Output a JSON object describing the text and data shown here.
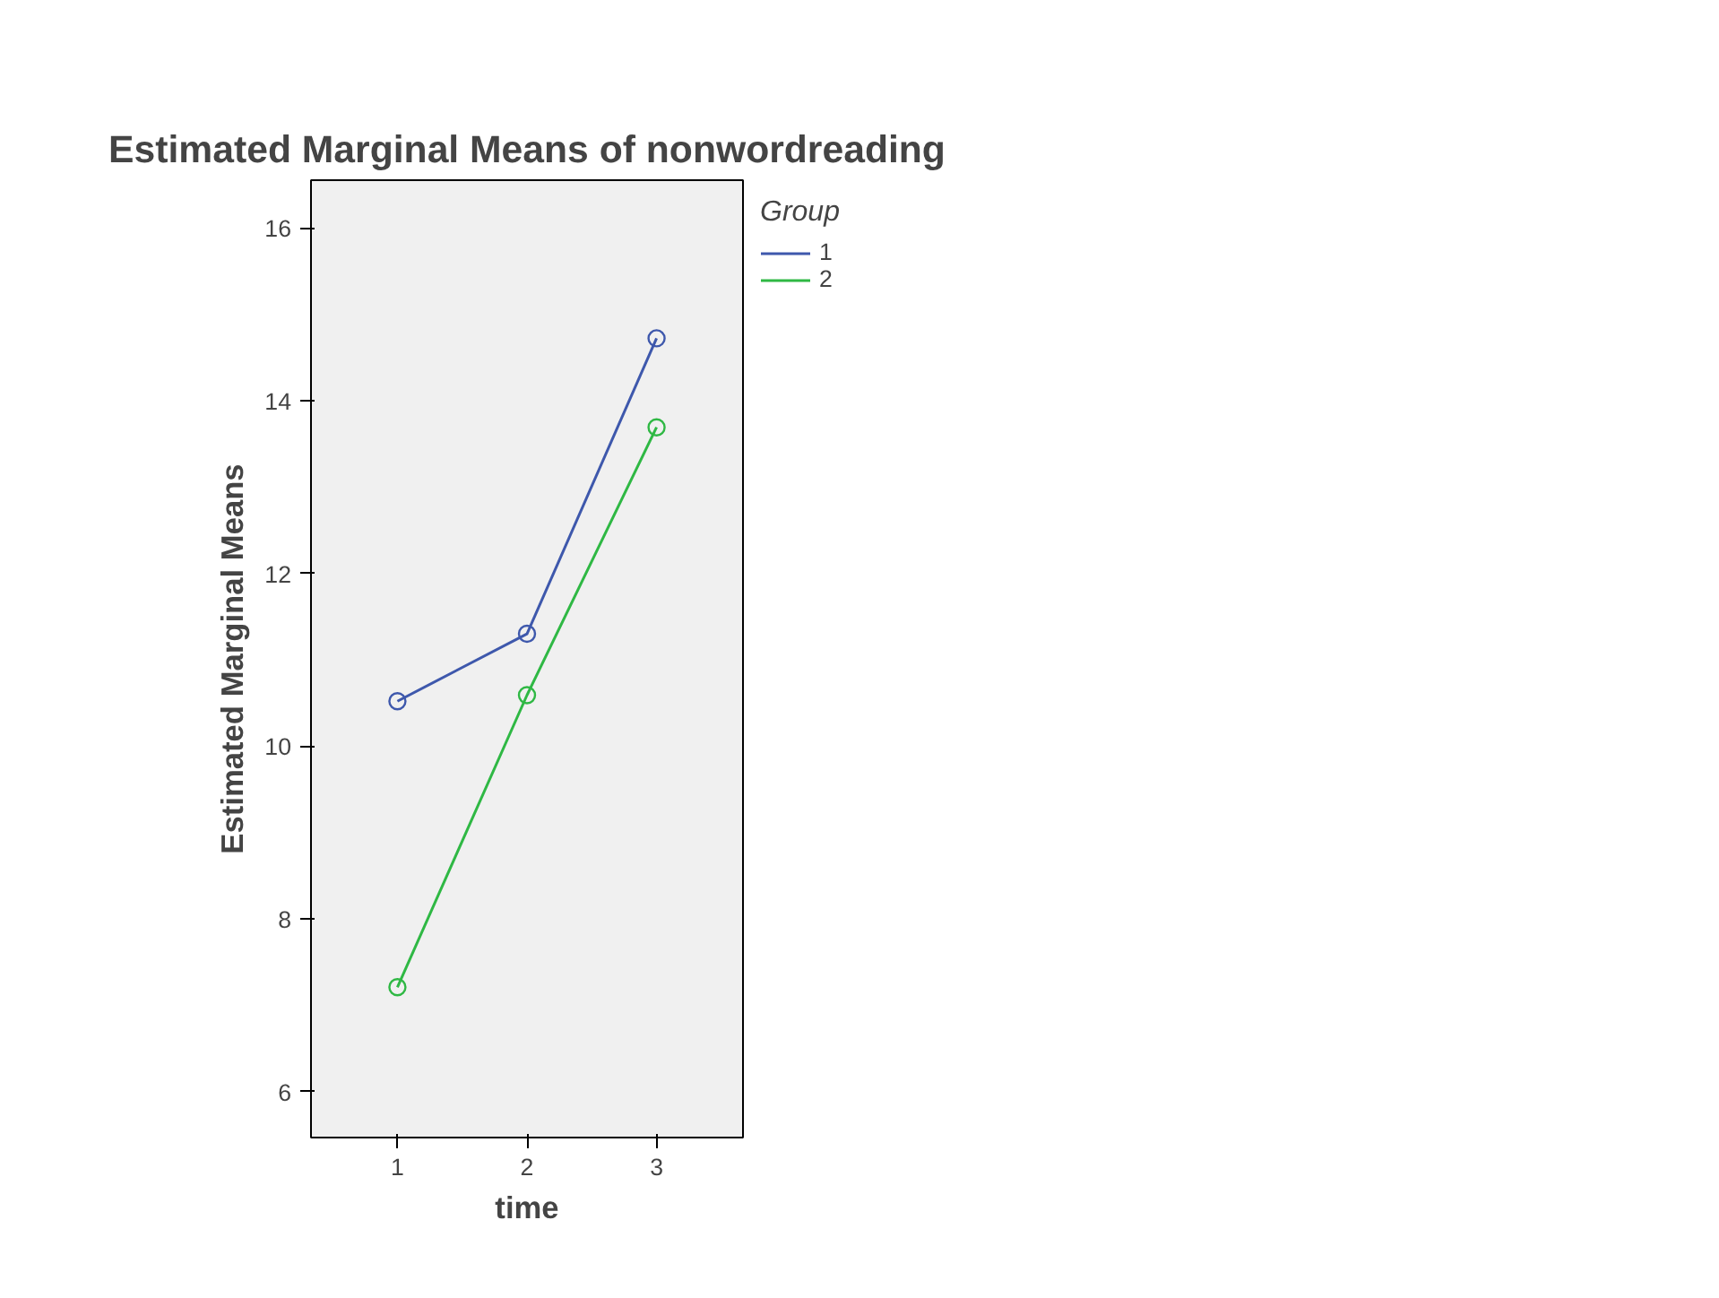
{
  "chart_data": {
    "type": "line",
    "title": "Estimated Marginal Means of nonwordreading",
    "xlabel": "time",
    "ylabel": "Estimated Marginal Means",
    "legend_title": "Group",
    "x": [
      1,
      2,
      3
    ],
    "xlim": [
      0.333,
      3.667
    ],
    "xticks": [
      1,
      2,
      3
    ],
    "ylim": [
      5.47,
      16.55
    ],
    "yticks": [
      6,
      8,
      10,
      12,
      14,
      16
    ],
    "series": [
      {
        "name": "1",
        "color": "#3e58ac",
        "values": [
          10.52,
          11.3,
          14.72
        ]
      },
      {
        "name": "2",
        "color": "#2fb844",
        "values": [
          7.21,
          10.59,
          13.69
        ]
      }
    ],
    "marker": "circle",
    "line_style": "solid",
    "grid": false,
    "legend": "top right"
  }
}
